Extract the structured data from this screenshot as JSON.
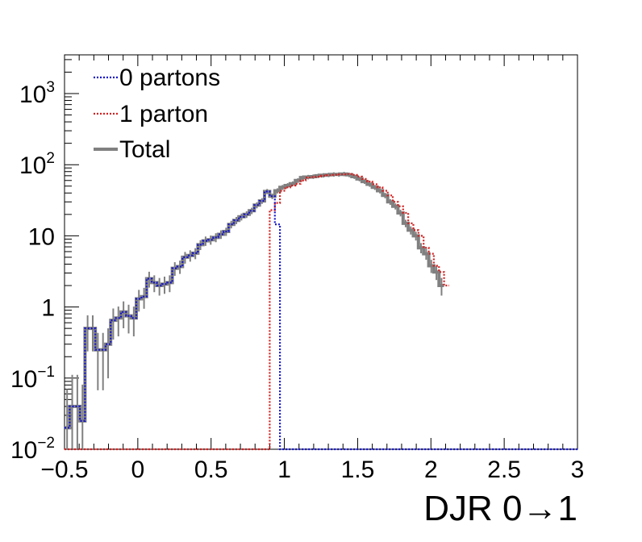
{
  "chart_data": {
    "type": "line",
    "xlabel": "DJR 0→1",
    "ylabel": "",
    "xlim": [
      -0.5,
      3.0
    ],
    "ylim": [
      0.01,
      3500
    ],
    "yscale": "log",
    "grid": false,
    "legend_position": "top-left",
    "x_ticks": [
      "−0.5",
      "0",
      "0.5",
      "1",
      "1.5",
      "2",
      "2.5",
      "3"
    ],
    "x_tick_values": [
      -0.5,
      0,
      0.5,
      1,
      1.5,
      2,
      2.5,
      3
    ],
    "y_ticks": [
      {
        "value": 0.01,
        "base": "10",
        "exp": "−2"
      },
      {
        "value": 0.1,
        "base": "10",
        "exp": "−1"
      },
      {
        "value": 1,
        "base": "1",
        "exp": ""
      },
      {
        "value": 10,
        "base": "10",
        "exp": ""
      },
      {
        "value": 100,
        "base": "10",
        "exp": "2"
      },
      {
        "value": 1000,
        "base": "10",
        "exp": "3"
      }
    ],
    "bin_width": 0.035,
    "series": [
      {
        "name": "0 partons",
        "color": "#1414cc",
        "style": "dotted",
        "start": -0.5,
        "values": [
          0.02,
          0.04,
          0.04,
          0.025,
          0.5,
          0.5,
          0.25,
          0.25,
          0.3,
          0.65,
          0.7,
          0.85,
          0.75,
          0.7,
          1.3,
          1.4,
          2.5,
          2.2,
          2.0,
          2.1,
          2.2,
          3.5,
          3.7,
          5.0,
          5.3,
          5.7,
          7.5,
          8.5,
          8.8,
          9.5,
          10.5,
          11.5,
          14.5,
          16.5,
          18.5,
          20,
          22.5,
          27,
          31,
          42,
          36,
          14.5,
          0.01,
          0.01,
          0.01,
          0.01,
          0.01,
          0.01,
          0.01,
          0.01,
          0.01,
          0.01,
          0.01,
          0.01,
          0.01,
          0.01,
          0.01,
          0.01,
          0.01,
          0.01,
          0.01,
          0.01,
          0.01,
          0.01,
          0.01,
          0.01,
          0.01,
          0.01,
          0.01,
          0.01,
          0.01,
          0.01,
          0.01,
          0.01,
          0.01,
          0.01,
          0.01,
          0.01,
          0.01,
          0.01,
          0.01,
          0.01,
          0.01,
          0.01,
          0.01,
          0.01,
          0.01,
          0.01,
          0.01,
          0.01,
          0.01,
          0.01,
          0.01,
          0.01,
          0.01,
          0.01,
          0.01,
          0.01,
          0.01,
          0.01
        ]
      },
      {
        "name": "1 parton",
        "color": "#d42020",
        "style": "dotted",
        "start": -0.5,
        "values": [
          0.01,
          0.01,
          0.01,
          0.01,
          0.01,
          0.01,
          0.01,
          0.01,
          0.01,
          0.01,
          0.01,
          0.01,
          0.01,
          0.01,
          0.01,
          0.01,
          0.01,
          0.01,
          0.01,
          0.01,
          0.01,
          0.01,
          0.01,
          0.01,
          0.01,
          0.01,
          0.01,
          0.01,
          0.01,
          0.01,
          0.01,
          0.01,
          0.01,
          0.01,
          0.01,
          0.01,
          0.01,
          0.01,
          0.01,
          0.01,
          23,
          29,
          43,
          48,
          51,
          54,
          60,
          66,
          67,
          68,
          70,
          71,
          72,
          73,
          73,
          74,
          72,
          68,
          63,
          58,
          53,
          48,
          43,
          37,
          30,
          26,
          21,
          15,
          12,
          10,
          6.8,
          5.6,
          3.8,
          3.1,
          2.0
        ]
      },
      {
        "name": "Total",
        "color": "#808080",
        "style": "solid",
        "start": -0.5,
        "values": [
          0.02,
          0.04,
          0.04,
          0.025,
          0.5,
          0.5,
          0.25,
          0.25,
          0.3,
          0.65,
          0.7,
          0.85,
          0.75,
          0.7,
          1.3,
          1.4,
          2.5,
          2.2,
          2.0,
          2.1,
          2.2,
          3.5,
          3.7,
          5.0,
          5.3,
          5.7,
          7.5,
          8.5,
          8.8,
          9.5,
          10.5,
          11.5,
          14.5,
          16.5,
          18.5,
          20,
          22.5,
          27,
          31,
          42,
          36,
          43,
          48,
          51,
          54,
          60,
          66,
          67,
          68,
          70,
          71,
          72,
          73,
          73,
          74,
          72,
          68,
          63,
          58,
          53,
          48,
          43,
          37,
          30,
          26,
          21,
          15,
          12,
          10,
          6.8,
          5.6,
          3.8,
          3.1,
          2.0
        ]
      }
    ]
  },
  "legend": {
    "items": [
      {
        "label": "0 partons",
        "color": "#1414cc",
        "style": "dotted"
      },
      {
        "label": "1 parton",
        "color": "#d42020",
        "style": "dotted"
      },
      {
        "label": "Total",
        "color": "#808080",
        "style": "solid"
      }
    ]
  }
}
